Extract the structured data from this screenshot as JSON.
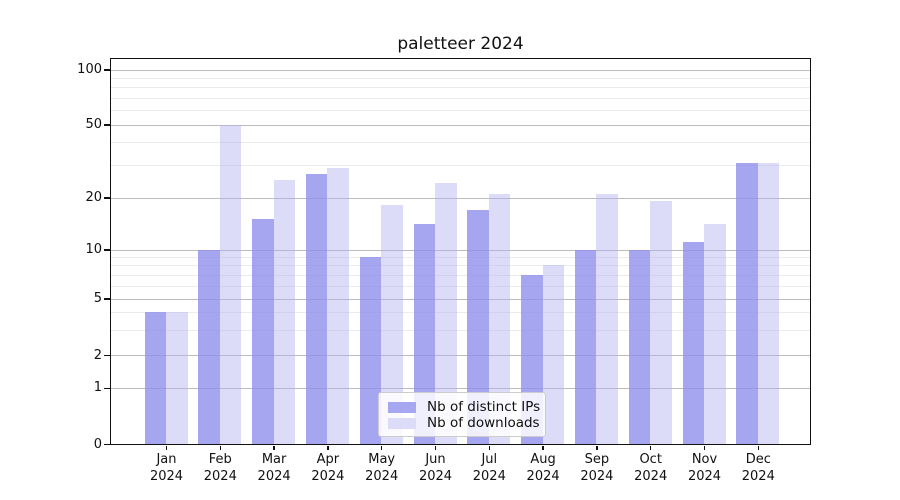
{
  "title": "paletteer 2024",
  "colors": {
    "distinct_ips": "#a6a6f1",
    "distinct_ips_fill": "rgba(144,144,236,0.8)",
    "downloads": "#dcdcf8",
    "downloads_fill": "rgba(177,177,239,0.45)",
    "grid_major": "#bcbcbc",
    "grid_minor": "#ebebeb",
    "axis": "#111111"
  },
  "legend": {
    "items": [
      {
        "label": "Nb of distinct IPs",
        "series": "distinct_ips"
      },
      {
        "label": "Nb of downloads",
        "series": "downloads"
      }
    ]
  },
  "y_axis": {
    "ticks": [
      100,
      50,
      20,
      10,
      5,
      2,
      1,
      0
    ]
  },
  "x_axis": {
    "ticks": [
      {
        "line1": "Jan",
        "line2": "2024"
      },
      {
        "line1": "Feb",
        "line2": "2024"
      },
      {
        "line1": "Mar",
        "line2": "2024"
      },
      {
        "line1": "Apr",
        "line2": "2024"
      },
      {
        "line1": "May",
        "line2": "2024"
      },
      {
        "line1": "Jun",
        "line2": "2024"
      },
      {
        "line1": "Jul",
        "line2": "2024"
      },
      {
        "line1": "Aug",
        "line2": "2024"
      },
      {
        "line1": "Sep",
        "line2": "2024"
      },
      {
        "line1": "Oct",
        "line2": "2024"
      },
      {
        "line1": "Nov",
        "line2": "2024"
      },
      {
        "line1": "Dec",
        "line2": "2024"
      }
    ]
  },
  "chart_data": {
    "type": "bar",
    "title": "paletteer 2024",
    "categories": [
      "Jan 2024",
      "Feb 2024",
      "Mar 2024",
      "Apr 2024",
      "May 2024",
      "Jun 2024",
      "Jul 2024",
      "Aug 2024",
      "Sep 2024",
      "Oct 2024",
      "Nov 2024",
      "Dec 2024"
    ],
    "series": [
      {
        "name": "Nb of distinct IPs",
        "color": "#a6a6f1",
        "values": [
          4,
          10,
          15,
          27,
          9,
          14,
          17,
          7,
          10,
          10,
          11,
          31
        ]
      },
      {
        "name": "Nb of downloads",
        "color": "#dcdcf8",
        "values": [
          4,
          50,
          25,
          29,
          18,
          24,
          21,
          8,
          21,
          19,
          14,
          31
        ]
      }
    ],
    "yscale": "pseudo_log",
    "y_ticks": [
      0,
      1,
      2,
      5,
      10,
      20,
      50,
      100
    ],
    "ylim": [
      0,
      115
    ],
    "grid": "on",
    "legend_position": "lower center"
  }
}
